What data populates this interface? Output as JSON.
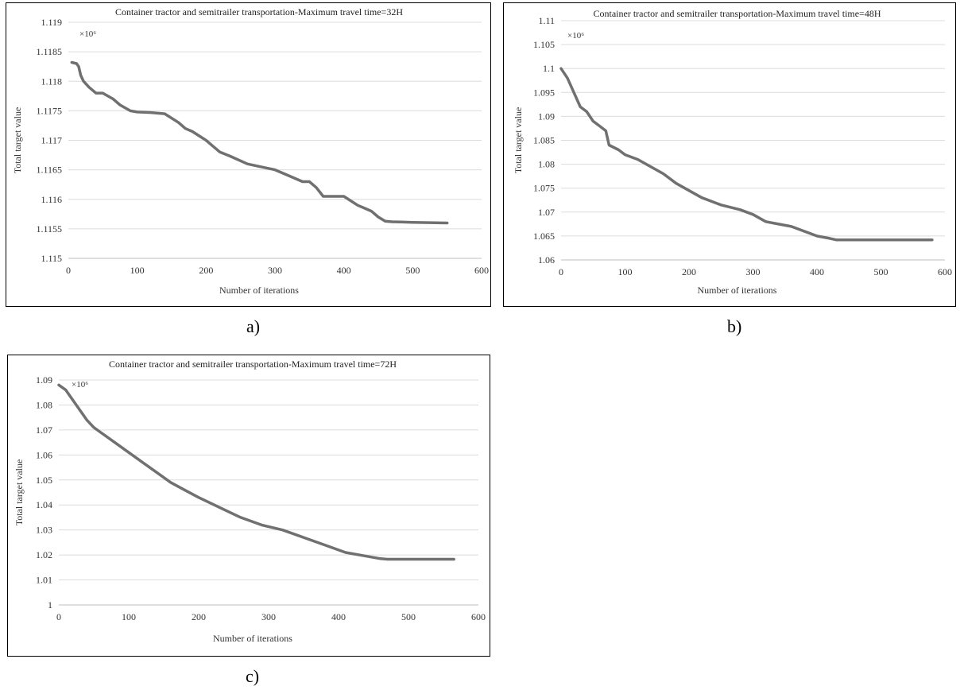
{
  "captions": [
    "a)",
    "b)",
    "c)"
  ],
  "chart_data": [
    {
      "type": "line",
      "title": "Container tractor and semitrailer transportation-Maximum travel time=32H",
      "multiplier": "×10⁶",
      "xlabel": "Number of iterations",
      "ylabel": "Total target value",
      "xlim": [
        0,
        600
      ],
      "ylim": [
        1.115,
        1.119
      ],
      "xticks": [
        0,
        100,
        200,
        300,
        400,
        500,
        600
      ],
      "yticks": [
        1.115,
        1.1155,
        1.116,
        1.1165,
        1.117,
        1.1175,
        1.118,
        1.1185,
        1.119
      ],
      "ytick_labels": [
        "1.115",
        "1.1155",
        "1.116",
        "1.1165",
        "1.117",
        "1.1175",
        "1.118",
        "1.1185",
        "1.119"
      ],
      "grid": true,
      "color": "#707070",
      "x": [
        5,
        12,
        15,
        18,
        22,
        30,
        40,
        50,
        65,
        75,
        90,
        100,
        120,
        140,
        160,
        170,
        180,
        200,
        210,
        220,
        235,
        260,
        280,
        300,
        320,
        340,
        350,
        360,
        370,
        400,
        420,
        430,
        440,
        450,
        460,
        470,
        500,
        550
      ],
      "y": [
        1.11832,
        1.1183,
        1.11825,
        1.1181,
        1.118,
        1.1179,
        1.1178,
        1.1178,
        1.1177,
        1.1176,
        1.1175,
        1.11748,
        1.11747,
        1.11745,
        1.1173,
        1.1172,
        1.11715,
        1.117,
        1.1169,
        1.1168,
        1.11673,
        1.1166,
        1.11655,
        1.1165,
        1.1164,
        1.1163,
        1.1163,
        1.1162,
        1.11605,
        1.11605,
        1.1159,
        1.11585,
        1.1158,
        1.1157,
        1.11563,
        1.11562,
        1.11561,
        1.1156
      ]
    },
    {
      "type": "line",
      "title": "Container tractor and semitrailer transportation-Maximum travel time=48H",
      "multiplier": "×10⁶",
      "xlabel": "Number of iterations",
      "ylabel": "Total target value",
      "xlim": [
        0,
        600
      ],
      "ylim": [
        1.06,
        1.11
      ],
      "xticks": [
        0,
        100,
        200,
        300,
        400,
        500,
        600
      ],
      "yticks": [
        1.06,
        1.065,
        1.07,
        1.075,
        1.08,
        1.085,
        1.09,
        1.095,
        1.1,
        1.105,
        1.11
      ],
      "ytick_labels": [
        "1.06",
        "1.065",
        "1.07",
        "1.075",
        "1.08",
        "1.085",
        "1.09",
        "1.095",
        "1.1",
        "1.105",
        "1.11"
      ],
      "grid": true,
      "color": "#707070",
      "x": [
        0,
        10,
        20,
        30,
        40,
        50,
        60,
        70,
        75,
        90,
        100,
        120,
        140,
        160,
        180,
        200,
        220,
        250,
        280,
        300,
        320,
        340,
        360,
        380,
        400,
        420,
        430,
        480,
        520,
        580
      ],
      "y": [
        1.1,
        1.098,
        1.095,
        1.092,
        1.091,
        1.089,
        1.088,
        1.087,
        1.084,
        1.083,
        1.082,
        1.081,
        1.0795,
        1.078,
        1.076,
        1.0745,
        1.073,
        1.0715,
        1.0705,
        1.0695,
        1.068,
        1.0675,
        1.067,
        1.066,
        1.065,
        1.0645,
        1.0642,
        1.0642,
        1.0642,
        1.0642
      ]
    },
    {
      "type": "line",
      "title": "Container tractor and semitrailer transportation-Maximum travel time=72H",
      "multiplier": "×10⁶",
      "xlabel": "Number of iterations",
      "ylabel": "Total target value",
      "xlim": [
        0,
        600
      ],
      "ylim": [
        1,
        1.09
      ],
      "xticks": [
        0,
        100,
        200,
        300,
        400,
        500,
        600
      ],
      "yticks": [
        1,
        1.01,
        1.02,
        1.03,
        1.04,
        1.05,
        1.06,
        1.07,
        1.08,
        1.09
      ],
      "ytick_labels": [
        "1",
        "1.01",
        "1.02",
        "1.03",
        "1.04",
        "1.05",
        "1.06",
        "1.07",
        "1.08",
        "1.09"
      ],
      "grid": true,
      "color": "#707070",
      "x": [
        0,
        10,
        20,
        30,
        40,
        50,
        60,
        80,
        100,
        120,
        140,
        160,
        180,
        200,
        230,
        260,
        290,
        320,
        350,
        380,
        410,
        440,
        460,
        470,
        500,
        530,
        565
      ],
      "y": [
        1.088,
        1.086,
        1.082,
        1.078,
        1.074,
        1.071,
        1.069,
        1.065,
        1.061,
        1.057,
        1.053,
        1.049,
        1.046,
        1.043,
        1.039,
        1.035,
        1.032,
        1.03,
        1.027,
        1.024,
        1.021,
        1.0195,
        1.0185,
        1.0183,
        1.0183,
        1.0183,
        1.0183
      ]
    }
  ]
}
